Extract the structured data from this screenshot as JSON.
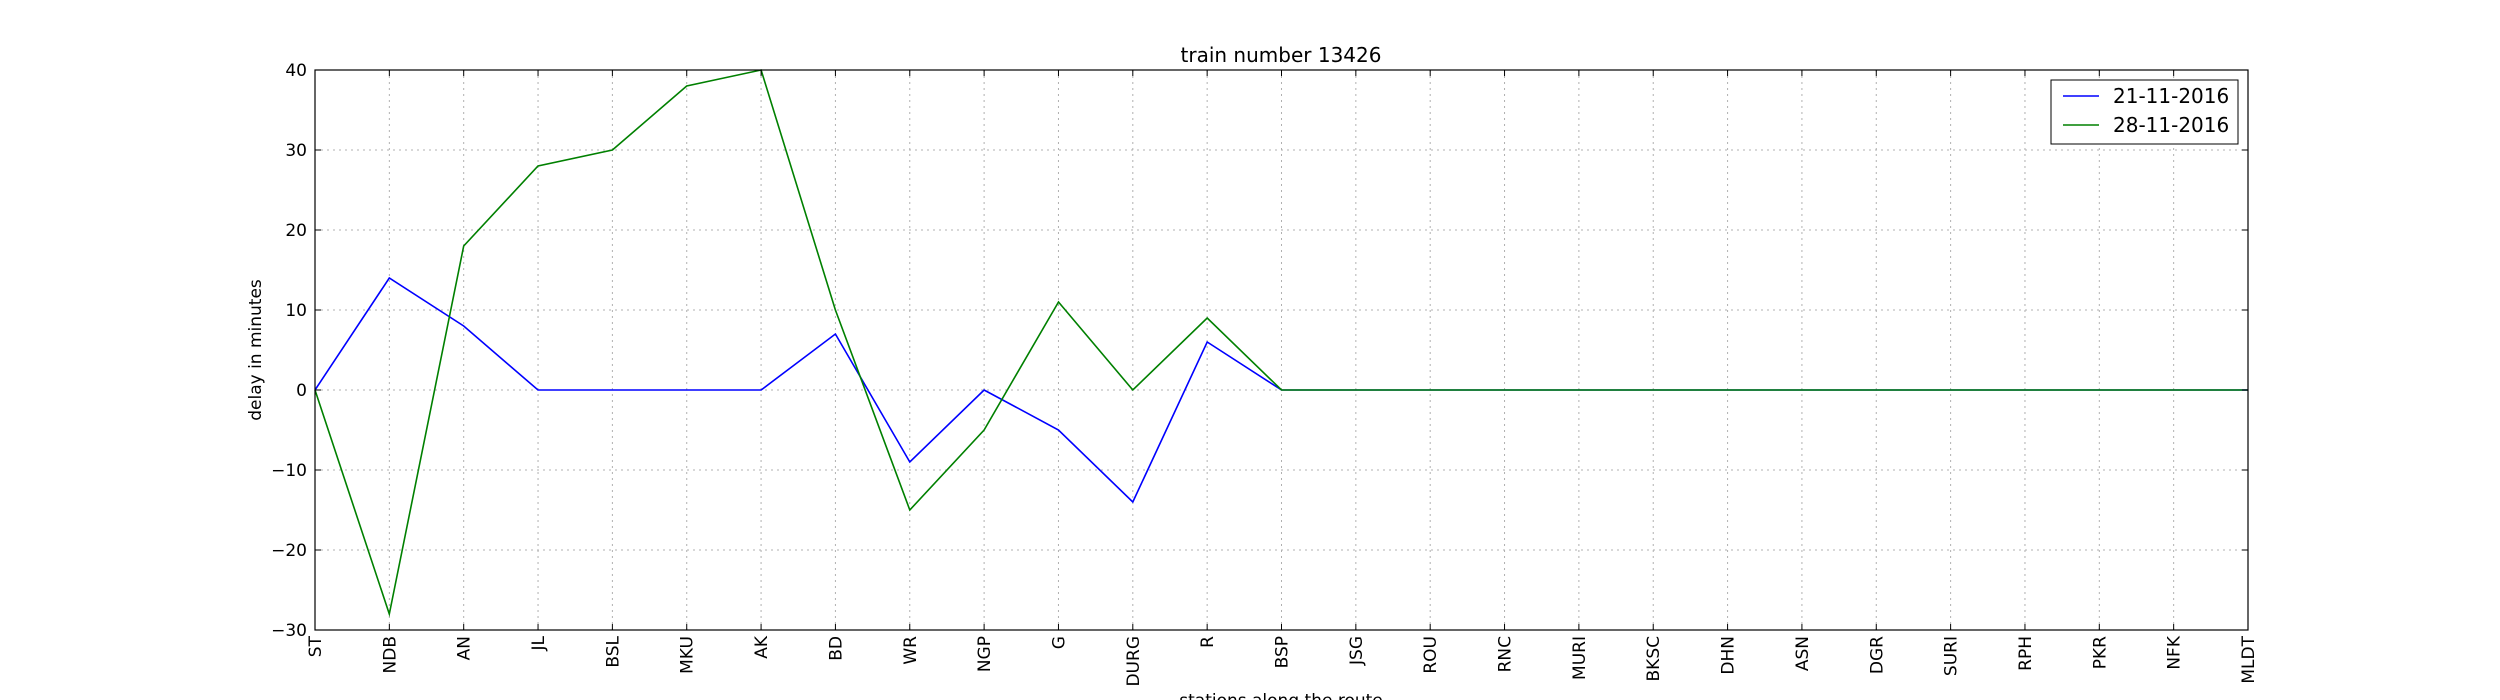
{
  "chart_data": {
    "type": "line",
    "title": "train number 13426",
    "xlabel": "stations along the route",
    "ylabel": "delay in minutes",
    "ylim": [
      -30,
      40
    ],
    "yticks": [
      -30,
      -20,
      -10,
      0,
      10,
      20,
      30,
      40
    ],
    "grid": true,
    "legend_position": "top-right",
    "categories": [
      "ST",
      "NDB",
      "AN",
      "JL",
      "BSL",
      "MKU",
      "AK",
      "BD",
      "WR",
      "NGP",
      "G",
      "DURG",
      "R",
      "BSP",
      "JSG",
      "ROU",
      "RNC",
      "MURI",
      "BKSC",
      "DHN",
      "ASN",
      "DGR",
      "SURI",
      "RPH",
      "PKR",
      "NFK",
      "MLDT"
    ],
    "series": [
      {
        "name": "21-11-2016",
        "color": "#0000ff",
        "values": [
          0,
          14,
          8,
          0,
          0,
          0,
          0,
          7,
          -9,
          0,
          -5,
          -14,
          6,
          0,
          0,
          0,
          0,
          0,
          0,
          0,
          0,
          0,
          0,
          0,
          0,
          0,
          0
        ]
      },
      {
        "name": "28-11-2016",
        "color": "#008000",
        "values": [
          0,
          -28,
          18,
          28,
          30,
          38,
          40,
          10,
          -15,
          -5,
          11,
          0,
          9,
          0,
          0,
          0,
          0,
          0,
          0,
          0,
          0,
          0,
          0,
          0,
          0,
          0,
          0
        ]
      }
    ]
  }
}
